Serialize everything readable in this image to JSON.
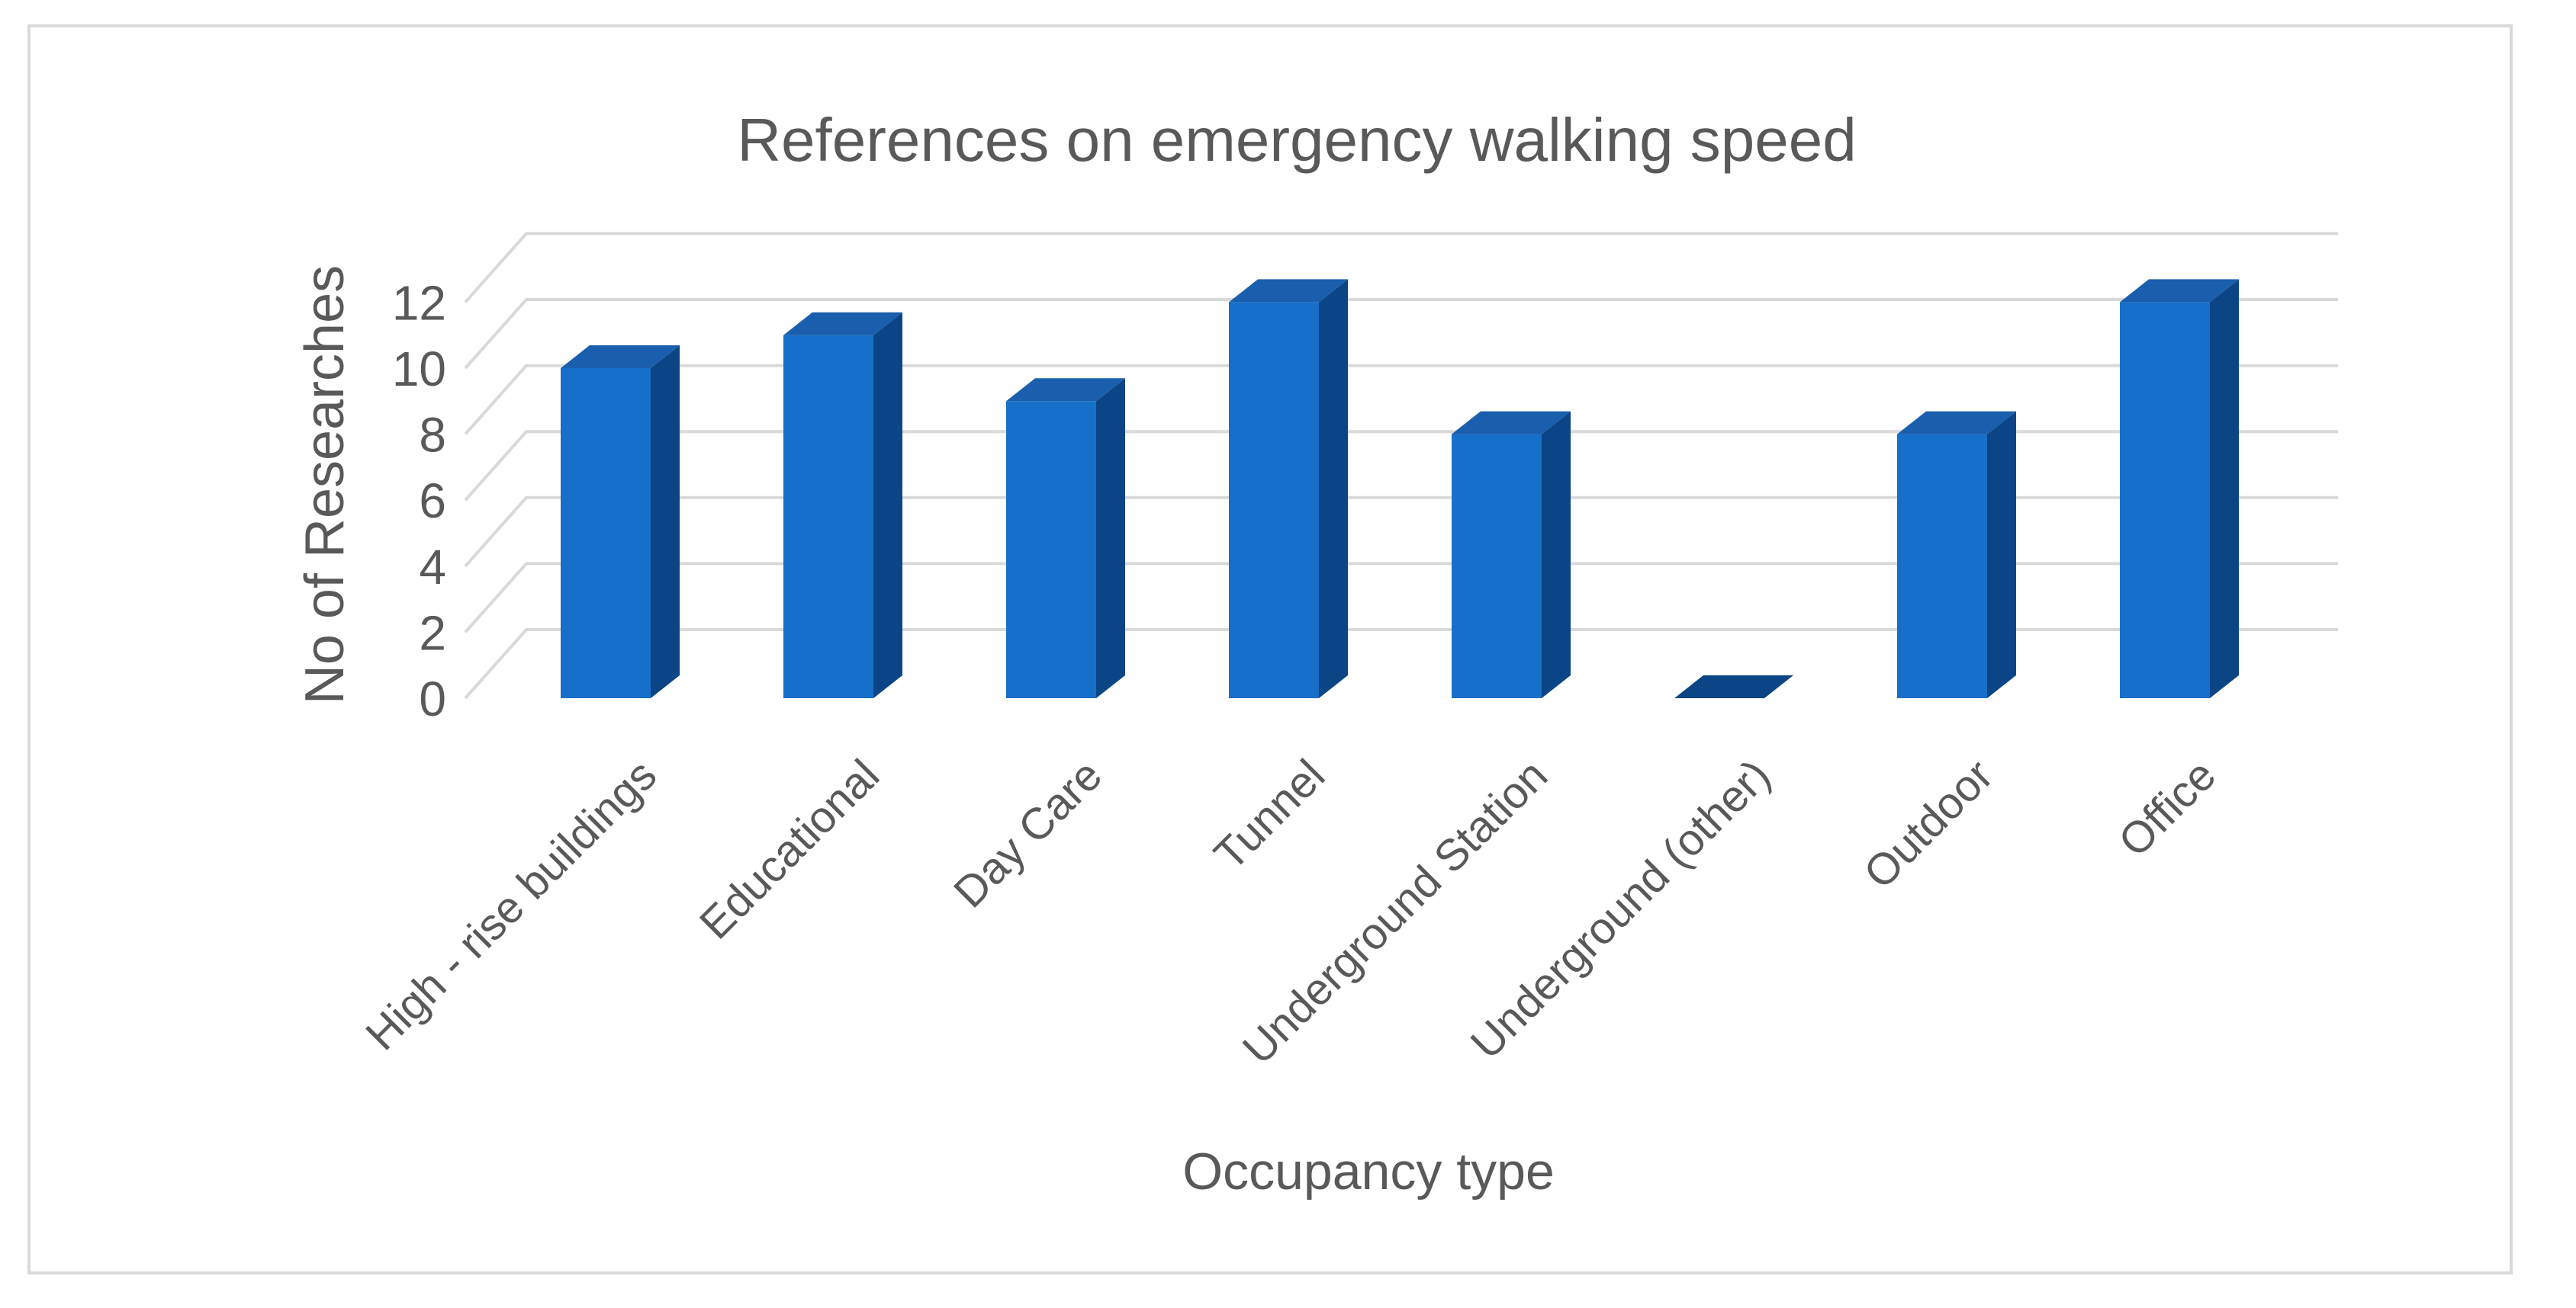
{
  "chart_data": {
    "type": "bar",
    "style": "3d-column",
    "title": "References on emergency walking speed",
    "xlabel": "Occupancy type",
    "ylabel": "No of Researches",
    "categories": [
      "High - rise buildings",
      "Educational",
      "Day Care",
      "Tunnel",
      "Underground Station",
      "Underground (other)",
      "Outdoor",
      "Office"
    ],
    "values": [
      10,
      11,
      9,
      12,
      8,
      0,
      8,
      12
    ],
    "ylim": [
      0,
      12
    ],
    "yticks": [
      0,
      2,
      4,
      6,
      8,
      10,
      12
    ],
    "grid": true,
    "legend": "none",
    "colors": {
      "bar_front": "#1670c9",
      "bar_side": "#0b4585",
      "bar_top": "#1a5fae",
      "grid": "#d9d9d9",
      "text": "#595959"
    }
  }
}
